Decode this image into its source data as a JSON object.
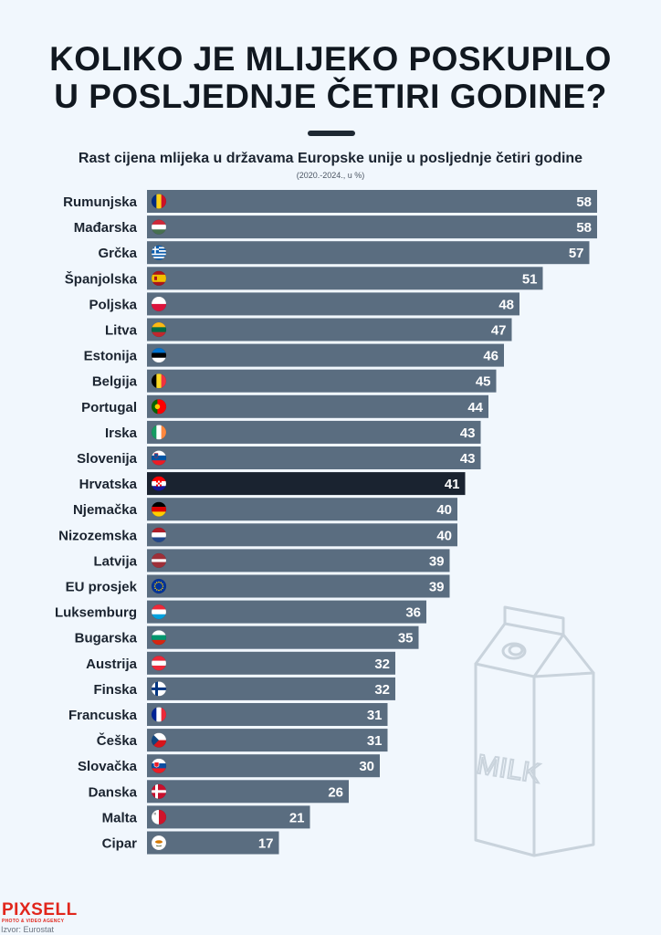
{
  "title_line1": "KOLIKO JE MLIJEKO POSKUPILO",
  "title_line2": "U POSLJEDNJE ČETIRI GODINE?",
  "chart_data": {
    "type": "bar",
    "orientation": "horizontal",
    "title": "Rast cijena mlijeka u državama Europske unije u posljednje četiri godine",
    "subtitle": "(2020.-2024., u %)",
    "categories": [
      "Rumunjska",
      "Mađarska",
      "Grčka",
      "Španjolska",
      "Poljska",
      "Litva",
      "Estonija",
      "Belgija",
      "Portugal",
      "Irska",
      "Slovenija",
      "Hrvatska",
      "Njemačka",
      "Nizozemska",
      "Latvija",
      "EU prosjek",
      "Luksemburg",
      "Bugarska",
      "Austrija",
      "Finska",
      "Francuska",
      "Češka",
      "Slovačka",
      "Danska",
      "Malta",
      "Cipar"
    ],
    "values": [
      58,
      58,
      57,
      51,
      48,
      47,
      46,
      45,
      44,
      43,
      43,
      41,
      40,
      40,
      39,
      39,
      36,
      35,
      32,
      32,
      31,
      31,
      30,
      26,
      21,
      17
    ],
    "highlight": "Hrvatska",
    "flags": [
      "ro",
      "hu",
      "gr",
      "es",
      "pl",
      "lt",
      "ee",
      "be",
      "pt",
      "ie",
      "si",
      "hr",
      "de",
      "nl",
      "lv",
      "eu",
      "lu",
      "bg",
      "at",
      "fi",
      "fr",
      "cz",
      "sk",
      "dk",
      "mt",
      "cy"
    ],
    "xlim": [
      0,
      58
    ],
    "colors": {
      "bar": "#5a6d80",
      "highlight": "#1a2330",
      "label": "#ffffff"
    }
  },
  "illustration": {
    "label": "MILK",
    "icon": "milk-carton-icon"
  },
  "brand": {
    "name_a": "PIX",
    "name_b": "SELL",
    "tagline": "PHOTO & VIDEO AGENCY"
  },
  "source": "Izvor: Eurostat"
}
